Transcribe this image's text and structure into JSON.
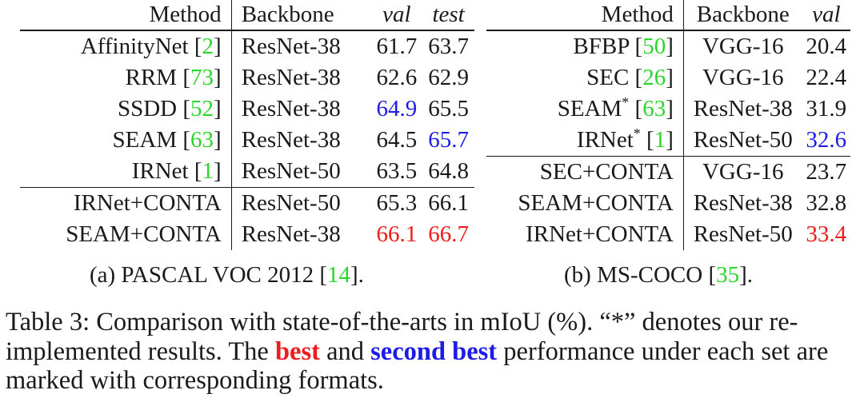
{
  "table_a": {
    "headers": [
      "Method",
      "Backbone",
      "val",
      "test"
    ],
    "rows": [
      {
        "method": "AffinityNet [",
        "ref": "2",
        "close": "]",
        "backbone": "ResNet-38",
        "val": "61.7",
        "test": "63.7"
      },
      {
        "method": "RRM [",
        "ref": "73",
        "close": "]",
        "backbone": "ResNet-38",
        "val": "62.6",
        "test": "62.9"
      },
      {
        "method": "SSDD [",
        "ref": "52",
        "close": "]",
        "backbone": "ResNet-38",
        "val": "64.9",
        "test": "65.5"
      },
      {
        "method": "SEAM [",
        "ref": "63",
        "close": "]",
        "backbone": "ResNet-38",
        "val": "64.5",
        "test": "65.7"
      },
      {
        "method": "IRNet [",
        "ref": "1",
        "close": "]",
        "backbone": "ResNet-50",
        "val": "63.5",
        "test": "64.8"
      },
      {
        "method": "IRNet+CONTA",
        "backbone": "ResNet-50",
        "val": "65.3",
        "test": "66.1"
      },
      {
        "method": "SEAM+CONTA",
        "backbone": "ResNet-38",
        "val": "66.1",
        "test": "66.7"
      }
    ],
    "caption": {
      "pre": "(a) PASCAL VOC 2012 [",
      "ref": "14",
      "post": "]."
    }
  },
  "table_b": {
    "headers": [
      "Method",
      "Backbone",
      "val"
    ],
    "rows": [
      {
        "method": "BFBP [",
        "ref": "50",
        "close": "]",
        "backbone": "VGG-16",
        "val": "20.4"
      },
      {
        "method": "SEC [",
        "ref": "26",
        "close": "]",
        "backbone": "VGG-16",
        "val": "22.4"
      },
      {
        "method": "SEAM",
        "star": "*",
        "method_post": " [",
        "ref": "63",
        "close": "]",
        "backbone": "ResNet-38",
        "val": "31.9"
      },
      {
        "method": "IRNet",
        "star": "*",
        "method_post": " [",
        "ref": "1",
        "close": "]",
        "backbone": "ResNet-50",
        "val": "32.6"
      },
      {
        "method": "SEC+CONTA",
        "backbone": "VGG-16",
        "val": "23.7"
      },
      {
        "method": "SEAM+CONTA",
        "backbone": "ResNet-38",
        "val": "32.8"
      },
      {
        "method": "IRNet+CONTA",
        "backbone": "ResNet-50",
        "val": "33.4"
      }
    ],
    "caption": {
      "pre": "(b) MS-COCO [",
      "ref": "35",
      "post": "]."
    }
  },
  "caption": {
    "part1": "Table 3: Comparison with state-of-the-arts in mIoU (%). “*” denotes our re-implemented results. The ",
    "best": "best",
    "part2": " and ",
    "second": "second best",
    "part3": " performance under each set are marked with corresponding formats."
  },
  "colors": {
    "best": "#ee1c1c",
    "second_best": "#1c1ce6",
    "citation": "#2bd62b"
  }
}
